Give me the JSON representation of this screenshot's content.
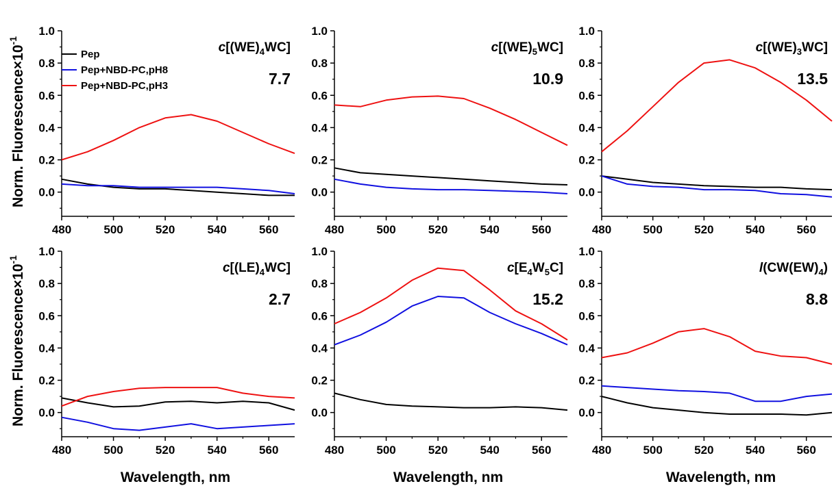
{
  "figure": {
    "ylabel_main": "Norm. Fluorescence",
    "ylabel_exp": "-1",
    "ylabel_mult": "×10",
    "xlabel": "Wavelength, nm"
  },
  "legend": {
    "placement": "top-left of first panel",
    "entries": [
      {
        "name": "Pep",
        "color": "#000000"
      },
      {
        "name": "Pep+NBD-PC,pH8",
        "color": "#1010e0"
      },
      {
        "name": "Pep+NBD-PC,pH3",
        "color": "#ee1111"
      }
    ]
  },
  "chart_data": [
    {
      "type": "line",
      "title": {
        "prefix": "c",
        "parts": [
          [
            "[(WE)",
            ""
          ],
          [
            "4",
            "sub"
          ],
          [
            "WC]",
            ""
          ]
        ]
      },
      "annotation": "7.7",
      "xlim": [
        480,
        570
      ],
      "ylim": [
        -0.15,
        1.0
      ],
      "xticks": [
        480,
        500,
        520,
        540,
        560
      ],
      "yticks": [
        0.0,
        0.2,
        0.4,
        0.6,
        0.8,
        1.0
      ],
      "grid": false,
      "x": [
        480,
        490,
        500,
        510,
        520,
        530,
        540,
        550,
        560,
        570
      ],
      "series": [
        {
          "name": "Pep",
          "color": "#000000",
          "values": [
            0.08,
            0.05,
            0.03,
            0.02,
            0.02,
            0.01,
            0.0,
            -0.01,
            -0.02,
            -0.02
          ]
        },
        {
          "name": "Pep+NBD-PC,pH8",
          "color": "#1010e0",
          "values": [
            0.05,
            0.04,
            0.04,
            0.03,
            0.03,
            0.03,
            0.03,
            0.02,
            0.01,
            -0.01
          ]
        },
        {
          "name": "Pep+NBD-PC,pH3",
          "color": "#ee1111",
          "values": [
            0.2,
            0.25,
            0.32,
            0.4,
            0.46,
            0.48,
            0.44,
            0.37,
            0.3,
            0.24
          ]
        }
      ]
    },
    {
      "type": "line",
      "title": {
        "prefix": "c",
        "parts": [
          [
            "[(WE)",
            ""
          ],
          [
            "5",
            "sub"
          ],
          [
            "WC]",
            ""
          ]
        ]
      },
      "annotation": "10.9",
      "xlim": [
        480,
        570
      ],
      "ylim": [
        -0.15,
        1.0
      ],
      "xticks": [
        480,
        500,
        520,
        540,
        560
      ],
      "yticks": [
        0.0,
        0.2,
        0.4,
        0.6,
        0.8,
        1.0
      ],
      "grid": false,
      "x": [
        480,
        490,
        500,
        510,
        520,
        530,
        540,
        550,
        560,
        570
      ],
      "series": [
        {
          "name": "Pep",
          "color": "#000000",
          "values": [
            0.15,
            0.12,
            0.11,
            0.1,
            0.09,
            0.08,
            0.07,
            0.06,
            0.05,
            0.045
          ]
        },
        {
          "name": "Pep+NBD-PC,pH8",
          "color": "#1010e0",
          "values": [
            0.08,
            0.05,
            0.03,
            0.02,
            0.015,
            0.015,
            0.01,
            0.005,
            0.0,
            -0.01
          ]
        },
        {
          "name": "Pep+NBD-PC,pH3",
          "color": "#ee1111",
          "values": [
            0.54,
            0.53,
            0.57,
            0.59,
            0.595,
            0.58,
            0.52,
            0.45,
            0.37,
            0.29
          ]
        }
      ]
    },
    {
      "type": "line",
      "title": {
        "prefix": "c",
        "parts": [
          [
            "[(WE)",
            ""
          ],
          [
            "3",
            "sub"
          ],
          [
            "WC]",
            ""
          ]
        ]
      },
      "annotation": "13.5",
      "xlim": [
        480,
        570
      ],
      "ylim": [
        -0.15,
        1.0
      ],
      "xticks": [
        480,
        500,
        520,
        540,
        560
      ],
      "yticks": [
        0.0,
        0.2,
        0.4,
        0.6,
        0.8,
        1.0
      ],
      "grid": false,
      "x": [
        480,
        490,
        500,
        510,
        520,
        530,
        540,
        550,
        560,
        570
      ],
      "series": [
        {
          "name": "Pep",
          "color": "#000000",
          "values": [
            0.1,
            0.08,
            0.06,
            0.05,
            0.04,
            0.035,
            0.03,
            0.03,
            0.02,
            0.015
          ]
        },
        {
          "name": "Pep+NBD-PC,pH8",
          "color": "#1010e0",
          "values": [
            0.1,
            0.05,
            0.035,
            0.03,
            0.015,
            0.015,
            0.01,
            -0.01,
            -0.015,
            -0.03
          ]
        },
        {
          "name": "Pep+NBD-PC,pH3",
          "color": "#ee1111",
          "values": [
            0.25,
            0.38,
            0.53,
            0.68,
            0.8,
            0.82,
            0.77,
            0.68,
            0.57,
            0.44
          ]
        }
      ]
    },
    {
      "type": "line",
      "title": {
        "prefix": "c",
        "parts": [
          [
            "[(LE)",
            ""
          ],
          [
            "4",
            "sub"
          ],
          [
            "WC]",
            ""
          ]
        ]
      },
      "annotation": "2.7",
      "xlim": [
        480,
        570
      ],
      "ylim": [
        -0.15,
        1.0
      ],
      "xticks": [
        480,
        500,
        520,
        540,
        560
      ],
      "yticks": [
        0.0,
        0.2,
        0.4,
        0.6,
        0.8,
        1.0
      ],
      "grid": false,
      "x": [
        480,
        490,
        500,
        510,
        520,
        530,
        540,
        550,
        560,
        570
      ],
      "series": [
        {
          "name": "Pep",
          "color": "#000000",
          "values": [
            0.09,
            0.06,
            0.035,
            0.04,
            0.065,
            0.07,
            0.06,
            0.07,
            0.06,
            0.015
          ]
        },
        {
          "name": "Pep+NBD-PC,pH8",
          "color": "#1010e0",
          "values": [
            -0.03,
            -0.06,
            -0.1,
            -0.11,
            -0.09,
            -0.07,
            -0.1,
            -0.09,
            -0.08,
            -0.07
          ]
        },
        {
          "name": "Pep+NBD-PC,pH3",
          "color": "#ee1111",
          "values": [
            0.04,
            0.1,
            0.13,
            0.15,
            0.155,
            0.155,
            0.155,
            0.12,
            0.1,
            0.09
          ]
        }
      ]
    },
    {
      "type": "line",
      "title": {
        "prefix": "c",
        "parts": [
          [
            "[E",
            ""
          ],
          [
            "4",
            "sub"
          ],
          [
            "W",
            ""
          ],
          [
            "5",
            "sub"
          ],
          [
            "C]",
            ""
          ]
        ]
      },
      "annotation": "15.2",
      "xlim": [
        480,
        570
      ],
      "ylim": [
        -0.15,
        1.0
      ],
      "xticks": [
        480,
        500,
        520,
        540,
        560
      ],
      "yticks": [
        0.0,
        0.2,
        0.4,
        0.6,
        0.8,
        1.0
      ],
      "grid": false,
      "x": [
        480,
        490,
        500,
        510,
        520,
        530,
        540,
        550,
        560,
        570
      ],
      "series": [
        {
          "name": "Pep",
          "color": "#000000",
          "values": [
            0.12,
            0.08,
            0.05,
            0.04,
            0.035,
            0.03,
            0.03,
            0.035,
            0.03,
            0.015
          ]
        },
        {
          "name": "Pep+NBD-PC,pH8",
          "color": "#1010e0",
          "values": [
            0.42,
            0.48,
            0.56,
            0.66,
            0.72,
            0.71,
            0.62,
            0.55,
            0.49,
            0.42
          ]
        },
        {
          "name": "Pep+NBD-PC,pH3",
          "color": "#ee1111",
          "values": [
            0.55,
            0.62,
            0.71,
            0.82,
            0.895,
            0.88,
            0.76,
            0.63,
            0.55,
            0.45
          ]
        }
      ]
    },
    {
      "type": "line",
      "title": {
        "prefix": "l",
        "parts": [
          [
            "(CW(EW)",
            ""
          ],
          [
            "4",
            "sub"
          ],
          [
            ")",
            ""
          ]
        ]
      },
      "annotation": "8.8",
      "xlim": [
        480,
        570
      ],
      "ylim": [
        -0.15,
        1.0
      ],
      "xticks": [
        480,
        500,
        520,
        540,
        560
      ],
      "yticks": [
        0.0,
        0.2,
        0.4,
        0.6,
        0.8,
        1.0
      ],
      "grid": false,
      "x": [
        480,
        490,
        500,
        510,
        520,
        530,
        540,
        550,
        560,
        570
      ],
      "series": [
        {
          "name": "Pep",
          "color": "#000000",
          "values": [
            0.1,
            0.06,
            0.03,
            0.015,
            0.0,
            -0.01,
            -0.01,
            -0.01,
            -0.015,
            0.0
          ]
        },
        {
          "name": "Pep+NBD-PC,pH8",
          "color": "#1010e0",
          "values": [
            0.165,
            0.155,
            0.145,
            0.135,
            0.13,
            0.12,
            0.07,
            0.07,
            0.1,
            0.115
          ]
        },
        {
          "name": "Pep+NBD-PC,pH3",
          "color": "#ee1111",
          "values": [
            0.34,
            0.37,
            0.43,
            0.5,
            0.52,
            0.47,
            0.38,
            0.35,
            0.34,
            0.3
          ]
        }
      ]
    }
  ]
}
